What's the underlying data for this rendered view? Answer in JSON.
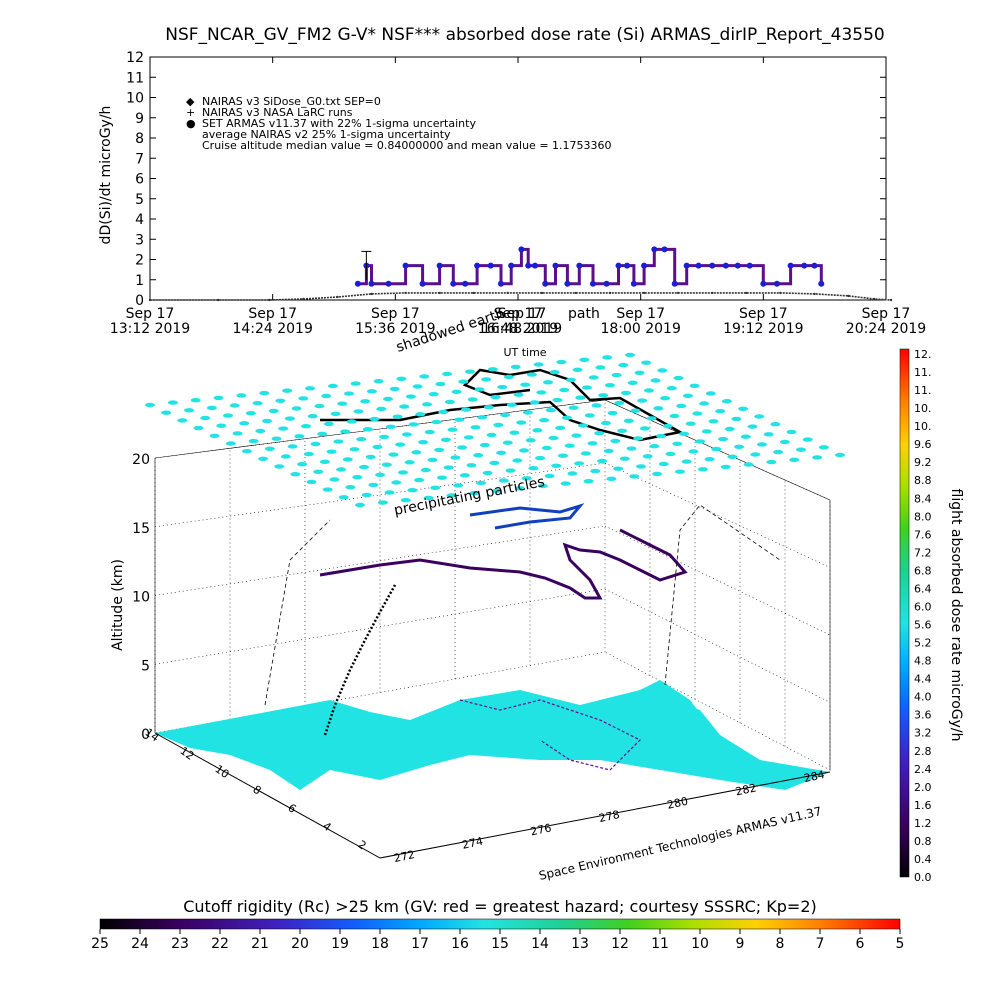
{
  "colors": {
    "armas_marker": "#1d1dd8",
    "armas_line": "#5b0f8a",
    "nairas_line": "#333333",
    "grid": "#000000",
    "particles": "#22e3e3",
    "land": "#22e3e3"
  },
  "chart_data": [
    {
      "type": "line",
      "title": "NSF_NCAR_GV_FM2 G-V* NSF*** absorbed dose rate (Si) ARMAS_dirIP_Report_43550",
      "xlabel": "UT time",
      "ylabel": "dD(Si)/dt microGy/h",
      "ylim": [
        0,
        12
      ],
      "yticks": [
        "0",
        "1",
        "2",
        "3",
        "4",
        "5",
        "6",
        "7",
        "8",
        "9",
        "10",
        "11",
        "12"
      ],
      "xticks": [
        {
          "day": "Sep 17",
          "time": "13:12 2019"
        },
        {
          "day": "Sep 17",
          "time": "14:24 2019"
        },
        {
          "day": "Sep 17",
          "time": "15:36 2019"
        },
        {
          "day": "Sep 17",
          "time": "16:48 2019"
        },
        {
          "day": "Sep 17",
          "time": "18:00 2019"
        },
        {
          "day": "Sep 17",
          "time": "19:12 2019"
        },
        {
          "day": "Sep 17",
          "time": "20:24 2019"
        }
      ],
      "legend_position": "top-left",
      "legend": [
        {
          "symbol": "◆",
          "label": "NAIRAS v3 SiDose_G0.txt SEP=0"
        },
        {
          "symbol": "+",
          "label": "NAIRAS v3 NASA LaRC runs"
        },
        {
          "symbol": "●",
          "label": "SET ARMAS v11.37 with 22% 1-sigma uncertainty"
        },
        {
          "symbol": "",
          "label": "average NAIRAS v2 25% 1-sigma uncertainty"
        },
        {
          "symbol": "",
          "label": "Cruise altitude median value = 0.84000000 and mean value = 1.1753360"
        }
      ],
      "x_unit": "minutes after 13:12 UT",
      "series": [
        {
          "name": "NAIRAS v3 SiDose_G0.txt SEP=0",
          "x": [
            0,
            40,
            70,
            90,
            110,
            130,
            150,
            170,
            190,
            210,
            230,
            250,
            270,
            290,
            310,
            330,
            350,
            370,
            390,
            410,
            425,
            435
          ],
          "values": [
            0.0,
            0.0,
            0.0,
            0.05,
            0.15,
            0.3,
            0.35,
            0.35,
            0.35,
            0.35,
            0.35,
            0.35,
            0.35,
            0.35,
            0.35,
            0.35,
            0.35,
            0.35,
            0.3,
            0.2,
            0.05,
            0.0
          ]
        },
        {
          "name": "SET ARMAS v11.37 with 22% 1-sigma uncertainty",
          "x": [
            122,
            127,
            130,
            140,
            150,
            160,
            170,
            178,
            185,
            192,
            200,
            206,
            212,
            218,
            222,
            226,
            232,
            238,
            245,
            252,
            260,
            268,
            275,
            280,
            284,
            290,
            296,
            302,
            308,
            315,
            322,
            330,
            338,
            345,
            352,
            360,
            368,
            376,
            384,
            390,
            394
          ],
          "values": [
            0.8,
            1.7,
            0.8,
            0.8,
            1.7,
            0.8,
            1.7,
            0.8,
            0.8,
            1.7,
            1.7,
            0.8,
            1.7,
            2.5,
            1.7,
            1.7,
            0.8,
            1.7,
            0.8,
            1.7,
            0.8,
            0.8,
            1.7,
            1.7,
            0.8,
            1.7,
            2.5,
            2.5,
            0.8,
            1.7,
            1.7,
            1.7,
            1.7,
            1.7,
            1.7,
            0.8,
            0.8,
            1.7,
            1.7,
            1.7,
            0.8
          ]
        }
      ]
    },
    {
      "type": "scatter",
      "chart_kind": "3d flight track over map",
      "zlabel": "Altitude (km)",
      "zlim": [
        0,
        20
      ],
      "zticks": [
        "0",
        "5",
        "10",
        "15",
        "20"
      ],
      "x_ticks": [
        "272",
        "274",
        "276",
        "278",
        "280",
        "282",
        "284"
      ],
      "y_ticks": [
        "2",
        "4",
        "6",
        "8",
        "10",
        "12",
        "14"
      ],
      "annotations": [
        "shadowed earth",
        "Sep 17",
        "16:48 2019",
        "precipitating particles",
        "path",
        "Space Environment Technologies ARMAS v11.37"
      ],
      "colorbar_label": "flight absorbed dose rate microGy/h",
      "colorbar_ticks": [
        "0.0",
        "0.4",
        "0.8",
        "1.2",
        "1.6",
        "2.0",
        "2.4",
        "2.8",
        "3.2",
        "3.6",
        "4.0",
        "4.4",
        "4.8",
        "5.2",
        "5.6",
        "6.0",
        "6.4",
        "6.8",
        "7.2",
        "7.6",
        "8.0",
        "8.4",
        "8.8",
        "9.2",
        "9.6",
        "10.",
        "10.",
        "11.",
        "11.",
        "12."
      ]
    },
    {
      "type": "heatmap",
      "label": "Cutoff rigidity (Rc) >25 km (GV: red = greatest hazard; courtesy SSSRC; Kp=2)",
      "ticks": [
        "25",
        "24",
        "23",
        "22",
        "21",
        "20",
        "19",
        "18",
        "17",
        "16",
        "15",
        "14",
        "13",
        "12",
        "11",
        "10",
        "9",
        "8",
        "7",
        "6",
        "5"
      ]
    }
  ]
}
